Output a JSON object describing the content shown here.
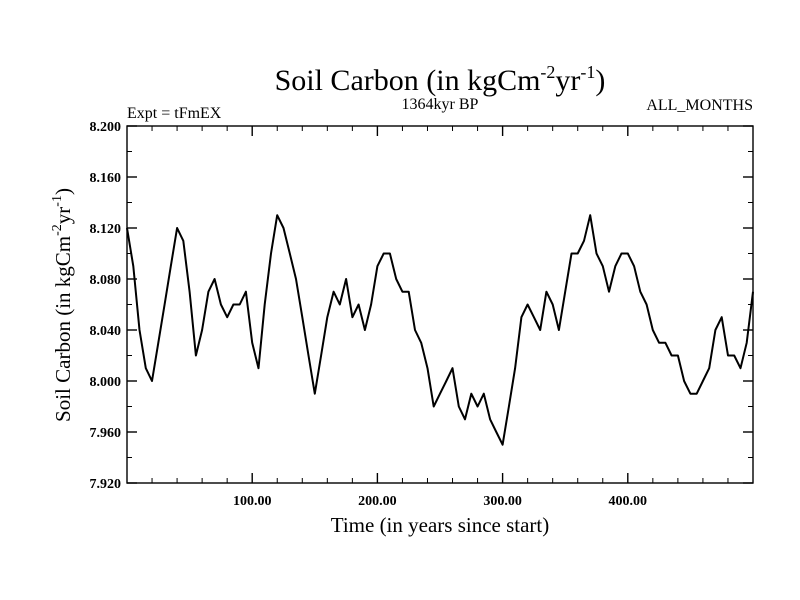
{
  "chart_data": {
    "type": "line",
    "title_main": "Soil Carbon (in kgCm",
    "title_exp1": "-2",
    "title_mid": "yr",
    "title_exp2": "-1",
    "title_close": ")",
    "left_label": "Expt = tFmEX",
    "center_label": "1364kyr BP",
    "right_label": "ALL_MONTHS",
    "xlabel": "Time (in years since start)",
    "ylabel_main": "Soil Carbon (in kgCm",
    "ylabel_exp1": "-2",
    "ylabel_mid": "yr",
    "ylabel_exp2": "-1",
    "ylabel_close": ")",
    "xlim": [
      0,
      500
    ],
    "ylim": [
      7.92,
      8.2
    ],
    "x_ticks": [
      {
        "value": 100,
        "label": "100.00"
      },
      {
        "value": 200,
        "label": "200.00"
      },
      {
        "value": 300,
        "label": "300.00"
      },
      {
        "value": 400,
        "label": "400.00"
      }
    ],
    "y_ticks": [
      {
        "value": 7.92,
        "label": "7.920"
      },
      {
        "value": 7.96,
        "label": "7.960"
      },
      {
        "value": 8.0,
        "label": "8.000"
      },
      {
        "value": 8.04,
        "label": "8.040"
      },
      {
        "value": 8.08,
        "label": "8.080"
      },
      {
        "value": 8.12,
        "label": "8.120"
      },
      {
        "value": 8.16,
        "label": "8.160"
      },
      {
        "value": 8.2,
        "label": "8.200"
      }
    ],
    "series": [
      {
        "name": "Soil Carbon",
        "x": [
          0,
          5,
          10,
          15,
          20,
          25,
          30,
          35,
          40,
          45,
          50,
          55,
          60,
          65,
          70,
          75,
          80,
          85,
          90,
          95,
          100,
          105,
          110,
          115,
          120,
          125,
          130,
          135,
          140,
          145,
          150,
          155,
          160,
          165,
          170,
          175,
          180,
          185,
          190,
          195,
          200,
          205,
          210,
          215,
          220,
          225,
          230,
          235,
          240,
          245,
          250,
          255,
          260,
          265,
          270,
          275,
          280,
          285,
          290,
          295,
          300,
          305,
          310,
          315,
          320,
          325,
          330,
          335,
          340,
          345,
          350,
          355,
          360,
          365,
          370,
          375,
          380,
          385,
          390,
          395,
          400,
          405,
          410,
          415,
          420,
          425,
          430,
          435,
          440,
          445,
          450,
          455,
          460,
          465,
          470,
          475,
          480,
          485,
          490,
          495,
          500
        ],
        "values": [
          8.12,
          8.09,
          8.04,
          8.01,
          8.0,
          8.03,
          8.06,
          8.09,
          8.12,
          8.11,
          8.07,
          8.02,
          8.04,
          8.07,
          8.08,
          8.06,
          8.05,
          8.06,
          8.06,
          8.07,
          8.03,
          8.01,
          8.06,
          8.1,
          8.13,
          8.12,
          8.1,
          8.08,
          8.05,
          8.02,
          7.99,
          8.02,
          8.05,
          8.07,
          8.06,
          8.08,
          8.05,
          8.06,
          8.04,
          8.06,
          8.09,
          8.1,
          8.1,
          8.08,
          8.07,
          8.07,
          8.04,
          8.03,
          8.01,
          7.98,
          7.99,
          8.0,
          8.01,
          7.98,
          7.97,
          7.99,
          7.98,
          7.99,
          7.97,
          7.96,
          7.95,
          7.98,
          8.01,
          8.05,
          8.06,
          8.05,
          8.04,
          8.07,
          8.06,
          8.04,
          8.07,
          8.1,
          8.1,
          8.11,
          8.13,
          8.1,
          8.09,
          8.07,
          8.09,
          8.1,
          8.1,
          8.09,
          8.07,
          8.06,
          8.04,
          8.03,
          8.03,
          8.02,
          8.02,
          8.0,
          7.99,
          7.99,
          8.0,
          8.01,
          8.04,
          8.05,
          8.02,
          8.02,
          8.01,
          8.03,
          8.07
        ]
      }
    ]
  }
}
